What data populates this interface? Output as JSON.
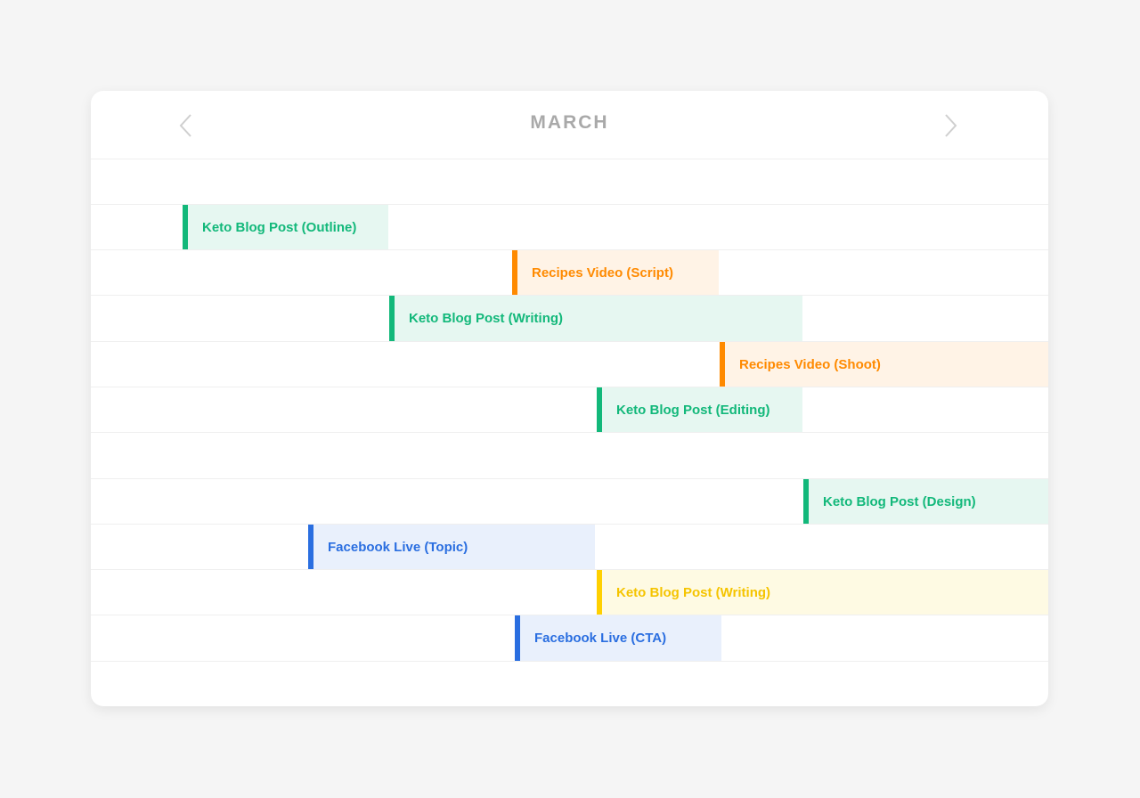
{
  "calendar": {
    "month": "MARCH",
    "prev_icon": "chevron-left-icon",
    "next_icon": "chevron-right-icon"
  },
  "colors": {
    "green": "#12b87a",
    "orange": "#ff8a00",
    "blue": "#2a6ee0",
    "yellow": "#ffd000"
  },
  "tasks": [
    {
      "label": "Keto Blog Post (Outline)",
      "color": "green"
    },
    {
      "label": "Recipes Video (Script)",
      "color": "orange"
    },
    {
      "label": "Keto Blog Post (Writing)",
      "color": "green"
    },
    {
      "label": "Recipes Video (Shoot)",
      "color": "orange"
    },
    {
      "label": "Keto Blog Post (Editing)",
      "color": "green"
    },
    {
      "label": "Keto Blog Post (Design)",
      "color": "green"
    },
    {
      "label": "Facebook Live (Topic)",
      "color": "blue"
    },
    {
      "label": "Keto Blog Post (Writing)",
      "color": "yellow"
    },
    {
      "label": "Facebook Live (CTA)",
      "color": "blue"
    }
  ]
}
